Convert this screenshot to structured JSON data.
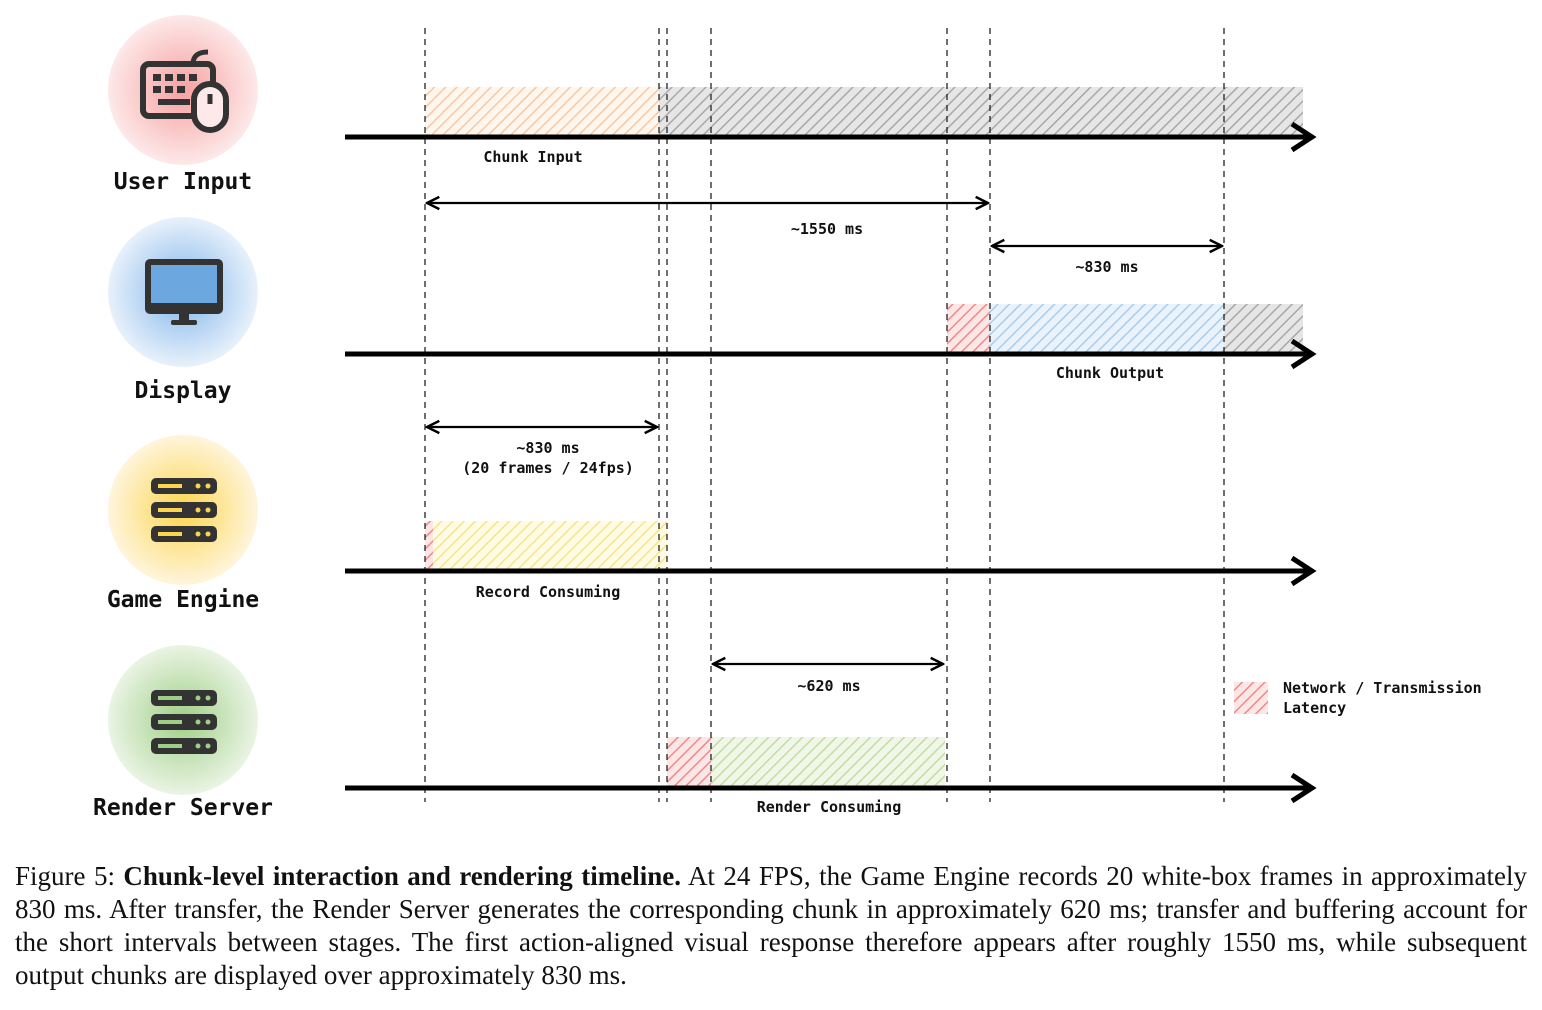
{
  "lanes": [
    {
      "label": "User Input"
    },
    {
      "label": "Display"
    },
    {
      "label": "Game Engine"
    },
    {
      "label": "Render Server"
    }
  ],
  "segment_labels": [
    "Chunk Input",
    "Chunk Output",
    "Record Consuming",
    "Render Consuming"
  ],
  "intervals": [
    {
      "label": "~1550 ms"
    },
    {
      "label": "~830 ms"
    },
    {
      "label": "~830 ms",
      "sublabel": "(20 frames / 24fps)"
    },
    {
      "label": "~620 ms"
    }
  ],
  "legend": {
    "lines": [
      "Network / Transmission",
      "Latency"
    ]
  },
  "caption": {
    "prefix": "Figure 5:",
    "bold": "Chunk-level interaction and rendering timeline.",
    "text": "At 24 FPS, the Game Engine records 20 white-box frames in approximately 830 ms. After transfer, the Render Server generates the corresponding chunk in approximately 620 ms; transfer and buffering account for the short intervals between stages. The first action-aligned visual response therefore appears after roughly 1550 ms, while subsequent output chunks are displayed over approximately 830 ms."
  }
}
